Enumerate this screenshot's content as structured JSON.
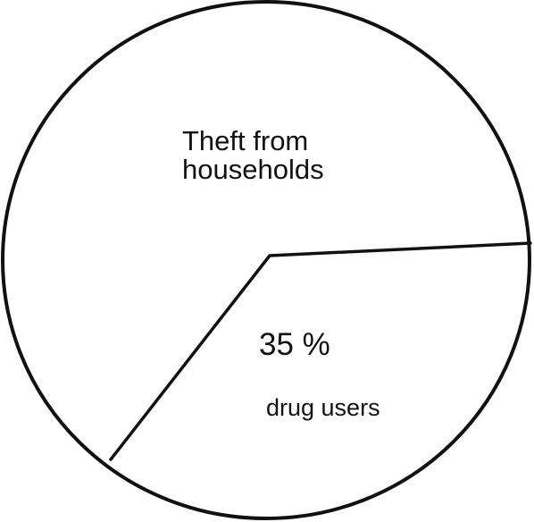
{
  "chart_data": {
    "type": "pie",
    "slices": [
      {
        "label": "Theft from households",
        "label_lines": [
          "Theft from",
          "households"
        ]
      },
      {
        "label": "drug users",
        "value": 35,
        "value_text": "35 %"
      }
    ]
  }
}
